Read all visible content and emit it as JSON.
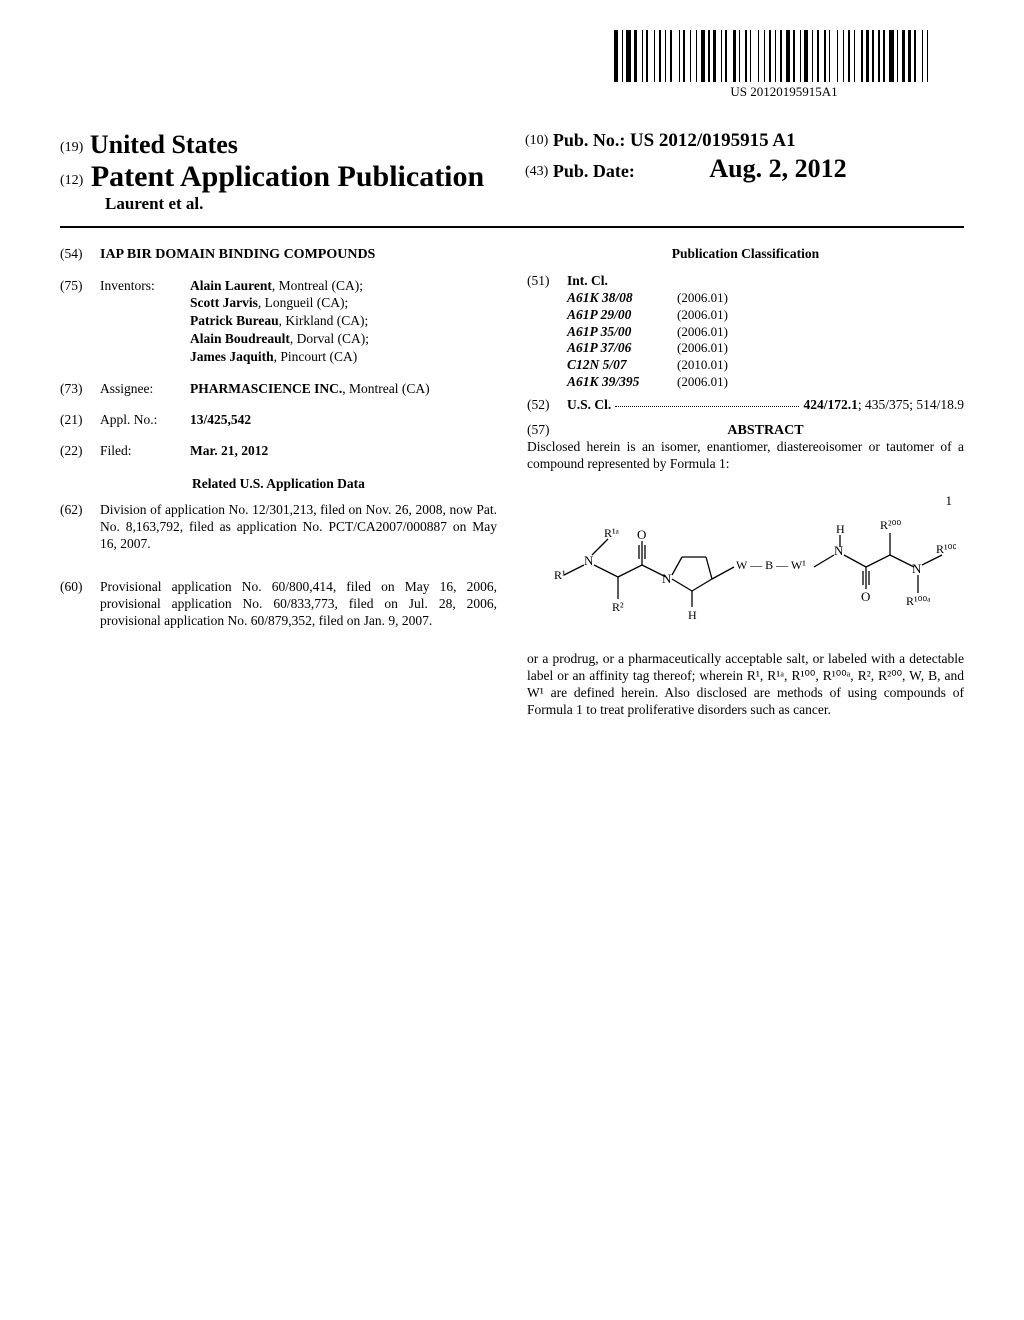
{
  "barcode_text": "US 20120195915A1",
  "header": {
    "country": "United States",
    "doc_type": "Patent Application Publication",
    "authors": "Laurent et al.",
    "prefix_19": "(19)",
    "prefix_12": "(12)"
  },
  "pub": {
    "prefix_10": "(10)",
    "pub_no_label": "Pub. No.:",
    "pub_no": "US 2012/0195915 A1",
    "prefix_43": "(43)",
    "pub_date_label": "Pub. Date:",
    "pub_date": "Aug. 2, 2012"
  },
  "fields": {
    "title_num": "(54)",
    "title": "IAP BIR DOMAIN BINDING COMPOUNDS",
    "inventors_num": "(75)",
    "inventors_label": "Inventors:",
    "inventors": [
      {
        "name": "Alain Laurent",
        "loc": ", Montreal (CA);"
      },
      {
        "name": "Scott Jarvis",
        "loc": ", Longueil (CA);"
      },
      {
        "name": "Patrick Bureau",
        "loc": ", Kirkland (CA);"
      },
      {
        "name": "Alain Boudreault",
        "loc": ", Dorval (CA);"
      },
      {
        "name": "James Jaquith",
        "loc": ", Pincourt (CA)"
      }
    ],
    "assignee_num": "(73)",
    "assignee_label": "Assignee:",
    "assignee_name": "PHARMASCIENCE INC.",
    "assignee_loc": ", Montreal (CA)",
    "appl_num_num": "(21)",
    "appl_num_label": "Appl. No.:",
    "appl_num": "13/425,542",
    "filed_num": "(22)",
    "filed_label": "Filed:",
    "filed": "Mar. 21, 2012",
    "related_heading": "Related U.S. Application Data",
    "related_62_num": "(62)",
    "related_62_text": "Division of application No. 12/301,213, filed on Nov. 26, 2008, now Pat. No. 8,163,792, filed as application No. PCT/CA2007/000887 on May 16, 2007.",
    "related_60_num": "(60)",
    "related_60_text": "Provisional application No. 60/800,414, filed on May 16, 2006, provisional application No. 60/833,773, filed on Jul. 28, 2006, provisional application No. 60/879,352, filed on Jan. 9, 2007."
  },
  "classification": {
    "heading": "Publication Classification",
    "intcl_num": "(51)",
    "intcl_label": "Int. Cl.",
    "intcl": [
      {
        "code": "A61K 38/08",
        "year": "(2006.01)"
      },
      {
        "code": "A61P 29/00",
        "year": "(2006.01)"
      },
      {
        "code": "A61P 35/00",
        "year": "(2006.01)"
      },
      {
        "code": "A61P 37/06",
        "year": "(2006.01)"
      },
      {
        "code": "C12N 5/07",
        "year": "(2010.01)"
      },
      {
        "code": "A61K 39/395",
        "year": "(2006.01)"
      }
    ],
    "uscl_num": "(52)",
    "uscl_label": "U.S. Cl.",
    "uscl_value": "424/172.1; 435/375; 514/18.9"
  },
  "abstract": {
    "num": "(57)",
    "heading": "ABSTRACT",
    "text1": "Disclosed herein is an isomer, enantiomer, diastereoisomer or tautomer of a compound represented by Formula 1:",
    "formula_number": "1",
    "text2": "or a prodrug, or a pharmaceutically acceptable salt, or labeled with a detectable label or an affinity tag thereof; wherein R¹, R¹ᵃ, R¹⁰⁰, R¹⁰⁰ᵃ, R², R²⁰⁰, W, B, and W¹ are defined herein. Also disclosed are methods of using compounds of Formula 1 to treat proliferative disorders such as cancer."
  },
  "barcode_pattern": [
    3,
    1,
    1,
    1,
    3,
    1,
    2,
    2,
    1,
    1,
    1,
    3,
    1,
    1,
    2,
    1,
    1,
    1,
    2,
    3,
    1,
    1,
    1,
    2,
    1,
    2,
    1,
    1,
    3,
    1,
    1,
    1,
    2,
    2,
    1,
    1,
    1,
    3,
    2,
    1,
    1,
    2,
    1,
    1,
    1,
    3,
    1,
    2,
    1,
    1,
    2,
    1,
    1,
    1,
    2,
    1,
    3,
    1,
    1,
    2,
    1,
    1,
    3,
    1,
    1,
    1,
    2,
    2,
    1,
    1,
    1,
    3,
    1,
    2,
    1,
    1,
    2,
    1,
    1,
    3,
    1,
    1,
    2,
    1,
    1,
    2,
    1,
    1,
    1,
    2,
    3,
    1,
    1,
    1,
    2,
    1,
    2,
    1,
    1,
    3,
    1,
    1,
    1,
    3
  ]
}
